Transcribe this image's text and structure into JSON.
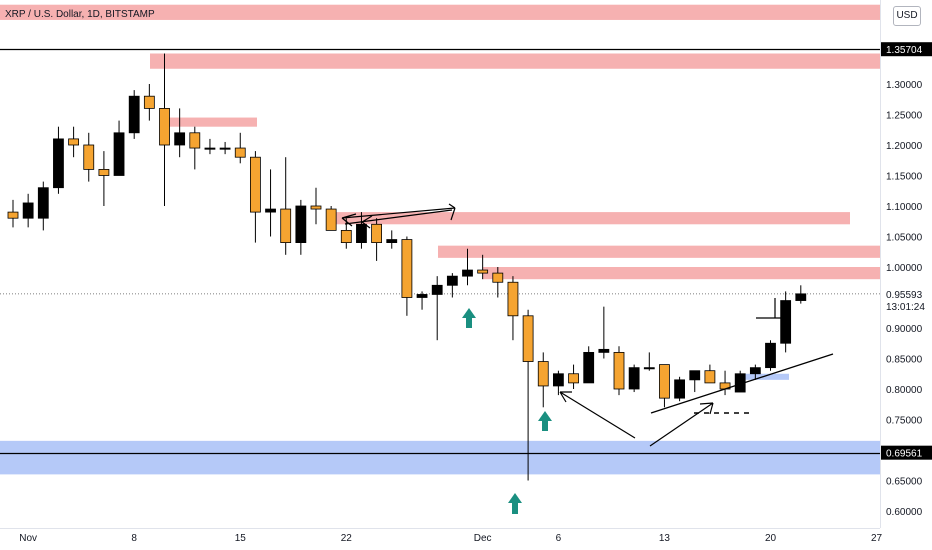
{
  "header": {
    "symbol_title": "XRP / U.S. Dollar, 1D, BITSTAMP",
    "currency": "USD"
  },
  "colors": {
    "bull_candle": "#000000",
    "bear_candle": "#f5a431",
    "resistance_zone": "#f4a3a3",
    "support_zone": "#a8c0f7",
    "arrow_up": "#1a8f80",
    "background": "#ffffff"
  },
  "price_labels": {
    "upper_level": "1.35704",
    "last_price": "0.95593",
    "countdown": "13:01:24",
    "lower_level": "0.69561"
  },
  "chart_data": {
    "type": "candlestick",
    "title": "XRP / U.S. Dollar, 1D, BITSTAMP",
    "y_axis_ticks": [
      0.6,
      0.65,
      0.7,
      0.75,
      0.8,
      0.85,
      0.9,
      0.95,
      1.0,
      1.05,
      1.1,
      1.15,
      1.2,
      1.25,
      1.3
    ],
    "y_axis_tick_labels": [
      "0.60000",
      "0.65000",
      "0.70000",
      "0.75000",
      "0.80000",
      "0.85000",
      "0.90000",
      "0.95000",
      "1.00000",
      "1.05000",
      "1.10000",
      "1.15000",
      "1.20000",
      "1.25000",
      "1.30000"
    ],
    "x_axis_tick_labels": [
      {
        "label": "Nov",
        "date": "Nov 1"
      },
      {
        "label": "8",
        "date": "Nov 8"
      },
      {
        "label": "15",
        "date": "Nov 15"
      },
      {
        "label": "22",
        "date": "Nov 22"
      },
      {
        "label": "Dec",
        "date": "Dec 1"
      },
      {
        "label": "6",
        "date": "Dec 6"
      },
      {
        "label": "13",
        "date": "Dec 13"
      },
      {
        "label": "20",
        "date": "Dec 20"
      },
      {
        "label": "27",
        "date": "Dec 27"
      }
    ],
    "ylim": [
      0.585,
      1.4
    ],
    "candles": [
      {
        "date": "Oct 31",
        "open": 1.09,
        "high": 1.11,
        "low": 1.065,
        "close": 1.08
      },
      {
        "date": "Nov 1",
        "open": 1.08,
        "high": 1.12,
        "low": 1.065,
        "close": 1.105
      },
      {
        "date": "Nov 2",
        "open": 1.08,
        "high": 1.14,
        "low": 1.06,
        "close": 1.13
      },
      {
        "date": "Nov 3",
        "open": 1.13,
        "high": 1.23,
        "low": 1.12,
        "close": 1.21
      },
      {
        "date": "Nov 4",
        "open": 1.21,
        "high": 1.23,
        "low": 1.18,
        "close": 1.2
      },
      {
        "date": "Nov 5",
        "open": 1.2,
        "high": 1.22,
        "low": 1.14,
        "close": 1.16
      },
      {
        "date": "Nov 6",
        "open": 1.16,
        "high": 1.19,
        "low": 1.1,
        "close": 1.15
      },
      {
        "date": "Nov 7",
        "open": 1.15,
        "high": 1.24,
        "low": 1.15,
        "close": 1.22
      },
      {
        "date": "Nov 8",
        "open": 1.22,
        "high": 1.29,
        "low": 1.21,
        "close": 1.28
      },
      {
        "date": "Nov 9",
        "open": 1.28,
        "high": 1.3,
        "low": 1.24,
        "close": 1.26
      },
      {
        "date": "Nov 10",
        "open": 1.26,
        "high": 1.35,
        "low": 1.1,
        "close": 1.2
      },
      {
        "date": "Nov 11",
        "open": 1.2,
        "high": 1.26,
        "low": 1.18,
        "close": 1.22
      },
      {
        "date": "Nov 12",
        "open": 1.22,
        "high": 1.23,
        "low": 1.16,
        "close": 1.195
      },
      {
        "date": "Nov 13",
        "open": 1.195,
        "high": 1.21,
        "low": 1.185,
        "close": 1.195
      },
      {
        "date": "Nov 14",
        "open": 1.195,
        "high": 1.205,
        "low": 1.185,
        "close": 1.195
      },
      {
        "date": "Nov 15",
        "open": 1.195,
        "high": 1.22,
        "low": 1.17,
        "close": 1.18
      },
      {
        "date": "Nov 16",
        "open": 1.18,
        "high": 1.19,
        "low": 1.04,
        "close": 1.09
      },
      {
        "date": "Nov 17",
        "open": 1.09,
        "high": 1.16,
        "low": 1.05,
        "close": 1.095
      },
      {
        "date": "Nov 18",
        "open": 1.095,
        "high": 1.18,
        "low": 1.02,
        "close": 1.04
      },
      {
        "date": "Nov 19",
        "open": 1.04,
        "high": 1.11,
        "low": 1.02,
        "close": 1.1
      },
      {
        "date": "Nov 20",
        "open": 1.1,
        "high": 1.13,
        "low": 1.07,
        "close": 1.095
      },
      {
        "date": "Nov 21",
        "open": 1.095,
        "high": 1.1,
        "low": 1.06,
        "close": 1.06
      },
      {
        "date": "Nov 22",
        "open": 1.06,
        "high": 1.08,
        "low": 1.03,
        "close": 1.04
      },
      {
        "date": "Nov 23",
        "open": 1.04,
        "high": 1.09,
        "low": 1.03,
        "close": 1.07
      },
      {
        "date": "Nov 24",
        "open": 1.07,
        "high": 1.08,
        "low": 1.01,
        "close": 1.04
      },
      {
        "date": "Nov 25",
        "open": 1.04,
        "high": 1.06,
        "low": 1.03,
        "close": 1.045
      },
      {
        "date": "Nov 26",
        "open": 1.045,
        "high": 1.05,
        "low": 0.92,
        "close": 0.95
      },
      {
        "date": "Nov 27",
        "open": 0.95,
        "high": 0.96,
        "low": 0.93,
        "close": 0.955
      },
      {
        "date": "Nov 28",
        "open": 0.955,
        "high": 0.985,
        "low": 0.88,
        "close": 0.97
      },
      {
        "date": "Nov 29",
        "open": 0.97,
        "high": 0.99,
        "low": 0.95,
        "close": 0.985
      },
      {
        "date": "Nov 30",
        "open": 0.985,
        "high": 1.03,
        "low": 0.97,
        "close": 0.995
      },
      {
        "date": "Dec 1",
        "open": 0.995,
        "high": 1.02,
        "low": 0.98,
        "close": 0.99
      },
      {
        "date": "Dec 2",
        "open": 0.99,
        "high": 1.0,
        "low": 0.95,
        "close": 0.975
      },
      {
        "date": "Dec 3",
        "open": 0.975,
        "high": 0.985,
        "low": 0.88,
        "close": 0.92
      },
      {
        "date": "Dec 4",
        "open": 0.92,
        "high": 0.93,
        "low": 0.65,
        "close": 0.845
      },
      {
        "date": "Dec 5",
        "open": 0.845,
        "high": 0.86,
        "low": 0.77,
        "close": 0.805
      },
      {
        "date": "Dec 6",
        "open": 0.805,
        "high": 0.83,
        "low": 0.79,
        "close": 0.825
      },
      {
        "date": "Dec 7",
        "open": 0.825,
        "high": 0.84,
        "low": 0.8,
        "close": 0.81
      },
      {
        "date": "Dec 8",
        "open": 0.81,
        "high": 0.87,
        "low": 0.81,
        "close": 0.86
      },
      {
        "date": "Dec 9",
        "open": 0.86,
        "high": 0.935,
        "low": 0.85,
        "close": 0.865
      },
      {
        "date": "Dec 10",
        "open": 0.86,
        "high": 0.87,
        "low": 0.79,
        "close": 0.8
      },
      {
        "date": "Dec 11",
        "open": 0.8,
        "high": 0.84,
        "low": 0.795,
        "close": 0.835
      },
      {
        "date": "Dec 12",
        "open": 0.835,
        "high": 0.86,
        "low": 0.83,
        "close": 0.835
      },
      {
        "date": "Dec 13",
        "open": 0.84,
        "high": 0.84,
        "low": 0.77,
        "close": 0.785
      },
      {
        "date": "Dec 14",
        "open": 0.785,
        "high": 0.82,
        "low": 0.78,
        "close": 0.815
      },
      {
        "date": "Dec 15",
        "open": 0.815,
        "high": 0.83,
        "low": 0.795,
        "close": 0.83
      },
      {
        "date": "Dec 16",
        "open": 0.83,
        "high": 0.84,
        "low": 0.81,
        "close": 0.81
      },
      {
        "date": "Dec 17",
        "open": 0.81,
        "high": 0.83,
        "low": 0.79,
        "close": 0.8
      },
      {
        "date": "Dec 18",
        "open": 0.795,
        "high": 0.83,
        "low": 0.795,
        "close": 0.825
      },
      {
        "date": "Dec 19",
        "open": 0.825,
        "high": 0.84,
        "low": 0.815,
        "close": 0.835
      },
      {
        "date": "Dec 20",
        "open": 0.835,
        "high": 0.88,
        "low": 0.83,
        "close": 0.875
      },
      {
        "date": "Dec 21",
        "open": 0.875,
        "high": 0.96,
        "low": 0.86,
        "close": 0.945
      },
      {
        "date": "Dec 22",
        "open": 0.945,
        "high": 0.97,
        "low": 0.94,
        "close": 0.956
      }
    ],
    "horizontal_levels": [
      {
        "price": 1.35704
      },
      {
        "price": 0.69561
      }
    ],
    "zones": [
      {
        "kind": "resistance",
        "from": "Nov 10",
        "to": "Dec 31",
        "low": 1.325,
        "high": 1.35
      },
      {
        "kind": "resistance",
        "from": "Oct 31",
        "to": "Dec 31",
        "low": 1.405,
        "high": 1.43
      },
      {
        "kind": "resistance",
        "from": "Nov 11",
        "to": "Nov 17",
        "low": 1.23,
        "high": 1.245
      },
      {
        "kind": "resistance",
        "from": "Nov 22",
        "to": "Dec 29",
        "low": 1.07,
        "high": 1.09
      },
      {
        "kind": "resistance",
        "from": "Nov 30",
        "to": "Dec 31",
        "low": 1.015,
        "high": 1.035
      },
      {
        "kind": "resistance",
        "from": "Dec 2",
        "to": "Dec 31",
        "low": 0.98,
        "high": 1.0
      },
      {
        "kind": "support",
        "from": "Oct 31",
        "to": "Dec 31",
        "low": 0.66,
        "high": 0.715
      },
      {
        "kind": "support",
        "from": "Dec 20",
        "to": "Dec 22",
        "low": 0.815,
        "high": 0.825
      }
    ]
  }
}
